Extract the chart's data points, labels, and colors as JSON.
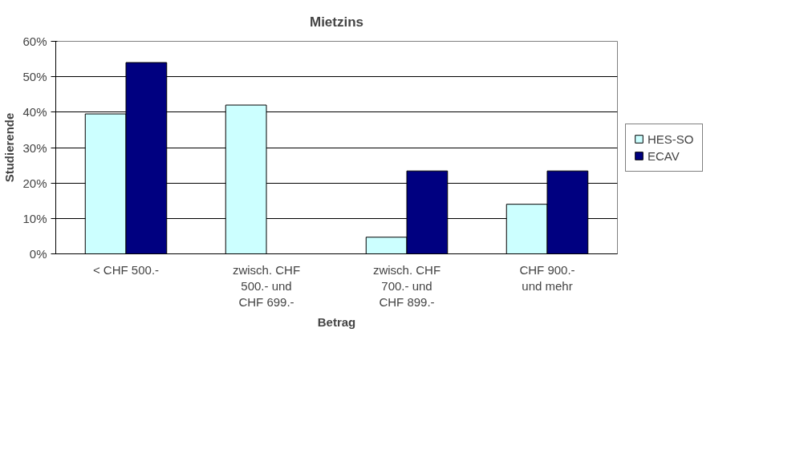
{
  "chart_data": {
    "type": "bar",
    "title": "Mietzins",
    "xlabel": "Betrag",
    "ylabel": "Studierende",
    "categories": [
      "< CHF 500.-",
      "zwisch. CHF 500.- und CHF 699.-",
      "zwisch. CHF 700.- und CHF 899.-",
      "CHF 900.- und mehr"
    ],
    "series": [
      {
        "name": "HES-SO",
        "color": "#ccffff",
        "values": [
          39.5,
          42,
          4.7,
          14
        ]
      },
      {
        "name": "ECAV",
        "color": "#000080",
        "values": [
          54,
          0,
          23.4,
          23.4
        ]
      }
    ],
    "ylim": [
      0,
      60
    ],
    "yticks": [
      {
        "value": 0,
        "label": "0%"
      },
      {
        "value": 10,
        "label": "10%"
      },
      {
        "value": 20,
        "label": "20%"
      },
      {
        "value": 30,
        "label": "30%"
      },
      {
        "value": 40,
        "label": "40%"
      },
      {
        "value": 50,
        "label": "50%"
      },
      {
        "value": 60,
        "label": "60%"
      }
    ],
    "grid": "y",
    "legend": "right"
  }
}
